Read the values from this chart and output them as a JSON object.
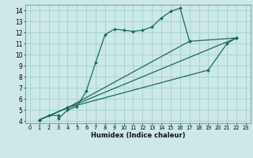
{
  "xlabel": "Humidex (Indice chaleur)",
  "bg_color": "#cce8e8",
  "grid_color": "#99cccc",
  "line_color": "#1a6b5a",
  "xlim": [
    -0.5,
    23.5
  ],
  "ylim": [
    3.8,
    14.5
  ],
  "xticks": [
    0,
    1,
    2,
    3,
    4,
    5,
    6,
    7,
    8,
    9,
    10,
    11,
    12,
    13,
    14,
    15,
    16,
    17,
    18,
    19,
    20,
    21,
    22,
    23
  ],
  "yticks": [
    4,
    5,
    6,
    7,
    8,
    9,
    10,
    11,
    12,
    13,
    14
  ],
  "line1_x": [
    1,
    2,
    3,
    3,
    4,
    5,
    6,
    7,
    8,
    9,
    10,
    11,
    12,
    13,
    14,
    15,
    16,
    17
  ],
  "line1_y": [
    4.1,
    4.5,
    4.5,
    4.2,
    5.0,
    5.3,
    6.7,
    9.3,
    11.8,
    12.3,
    12.2,
    12.1,
    12.2,
    12.5,
    13.3,
    13.9,
    14.2,
    11.2
  ],
  "line2_x": [
    1,
    4,
    17,
    22
  ],
  "line2_y": [
    4.1,
    5.2,
    11.2,
    11.5
  ],
  "line3_x": [
    1,
    4,
    19,
    21,
    22
  ],
  "line3_y": [
    4.1,
    5.2,
    8.6,
    11.0,
    11.5
  ],
  "line4_x": [
    1,
    4,
    22
  ],
  "line4_y": [
    4.1,
    5.2,
    11.5
  ]
}
